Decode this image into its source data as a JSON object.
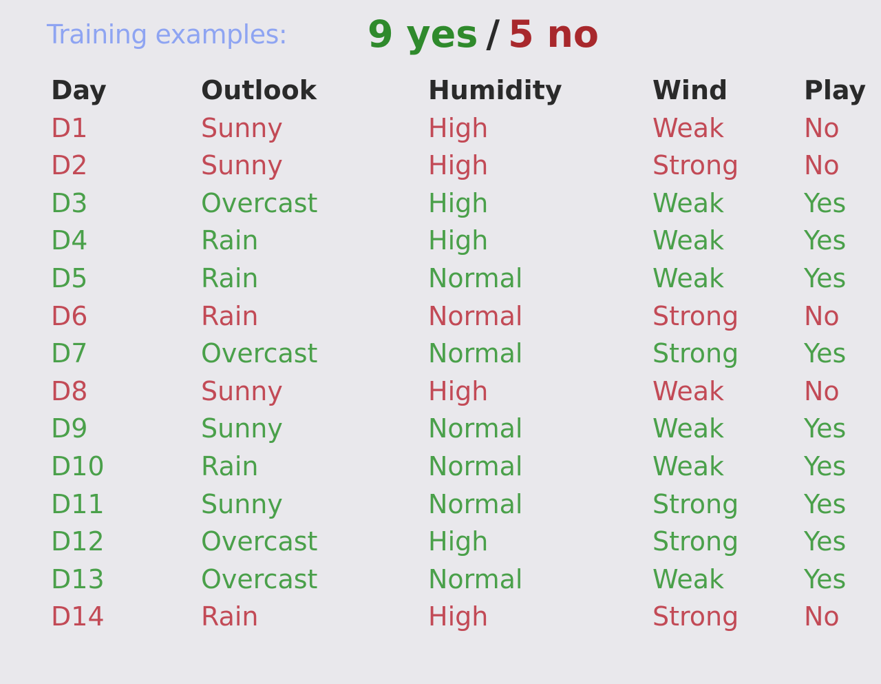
{
  "title": {
    "label": "Training examples:",
    "yes_text": "9 yes",
    "slash": "/",
    "no_text": "5 no"
  },
  "colors": {
    "yes": "#4aa04a",
    "no": "#c24a56",
    "header": "#2a2a2a",
    "title_label": "#8ea4f2"
  },
  "table": {
    "headers": [
      "Day",
      "Outlook",
      "Humidity",
      "Wind",
      "Play"
    ],
    "rows": [
      {
        "day": "D1",
        "outlook": "Sunny",
        "humidity": "High",
        "wind": "Weak",
        "play": "No"
      },
      {
        "day": "D2",
        "outlook": "Sunny",
        "humidity": "High",
        "wind": "Strong",
        "play": "No"
      },
      {
        "day": "D3",
        "outlook": "Overcast",
        "humidity": "High",
        "wind": "Weak",
        "play": "Yes"
      },
      {
        "day": "D4",
        "outlook": "Rain",
        "humidity": "High",
        "wind": "Weak",
        "play": "Yes"
      },
      {
        "day": "D5",
        "outlook": "Rain",
        "humidity": "Normal",
        "wind": "Weak",
        "play": "Yes"
      },
      {
        "day": "D6",
        "outlook": "Rain",
        "humidity": "Normal",
        "wind": "Strong",
        "play": "No"
      },
      {
        "day": "D7",
        "outlook": "Overcast",
        "humidity": "Normal",
        "wind": "Strong",
        "play": "Yes"
      },
      {
        "day": "D8",
        "outlook": "Sunny",
        "humidity": "High",
        "wind": "Weak",
        "play": "No"
      },
      {
        "day": "D9",
        "outlook": "Sunny",
        "humidity": "Normal",
        "wind": "Weak",
        "play": "Yes"
      },
      {
        "day": "D10",
        "outlook": "Rain",
        "humidity": "Normal",
        "wind": "Weak",
        "play": "Yes"
      },
      {
        "day": "D11",
        "outlook": "Sunny",
        "humidity": "Normal",
        "wind": "Strong",
        "play": "Yes"
      },
      {
        "day": "D12",
        "outlook": "Overcast",
        "humidity": "High",
        "wind": "Strong",
        "play": "Yes"
      },
      {
        "day": "D13",
        "outlook": "Overcast",
        "humidity": "Normal",
        "wind": "Weak",
        "play": "Yes"
      },
      {
        "day": "D14",
        "outlook": "Rain",
        "humidity": "High",
        "wind": "Strong",
        "play": "No"
      }
    ]
  }
}
